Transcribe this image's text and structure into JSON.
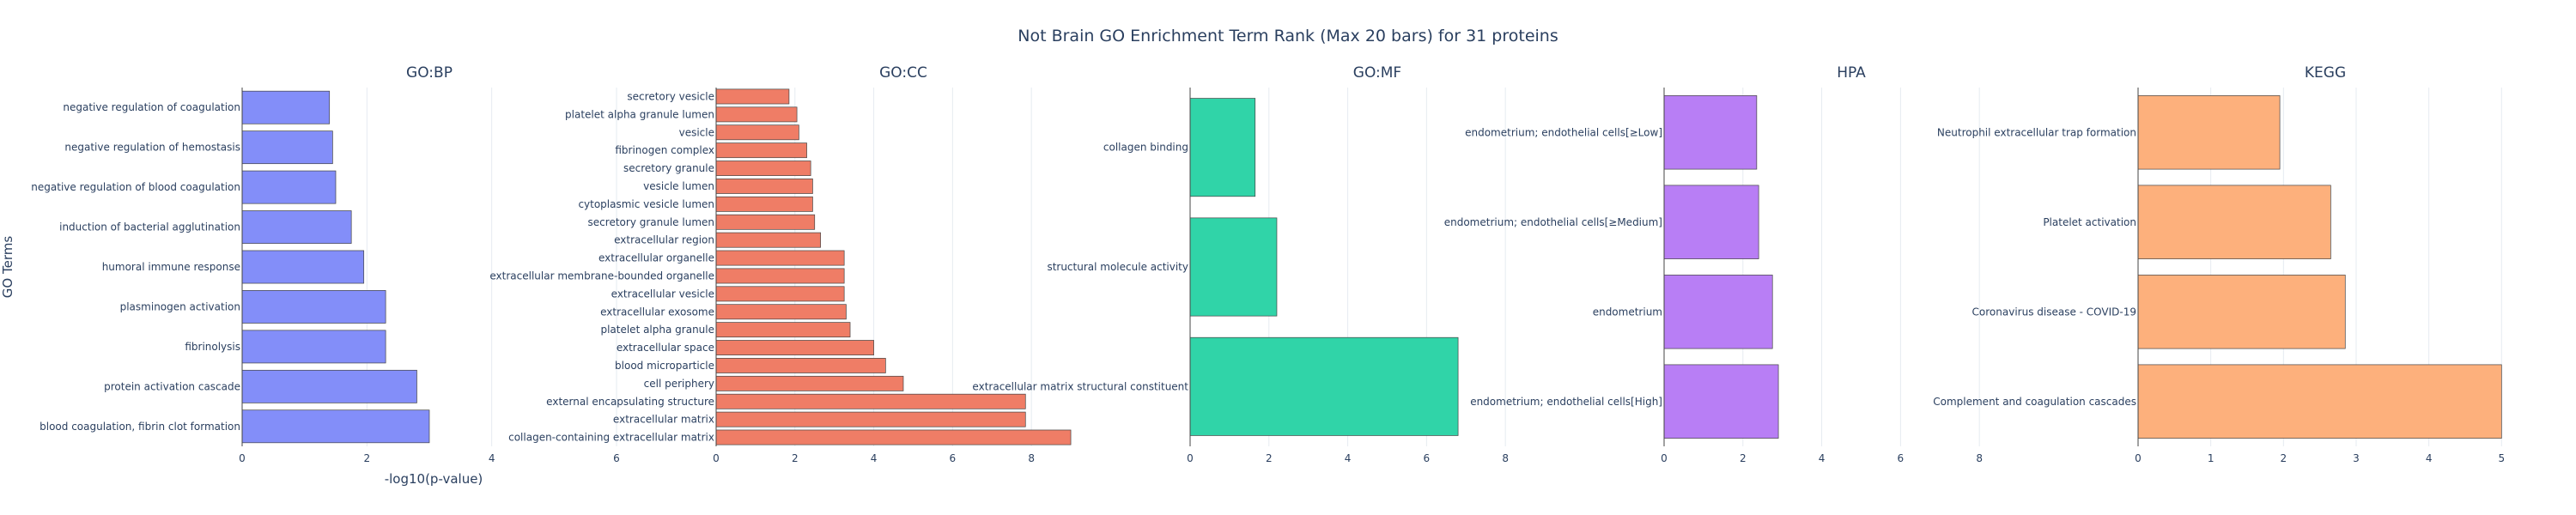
{
  "chart_data": {
    "type": "bar",
    "orientation": "horizontal",
    "title": "Not Brain GO Enrichment Term Rank (Max 20 bars) for 31 proteins",
    "xlabel": "-log10(p-value)",
    "ylabel": "GO Terms",
    "grid": true,
    "panels": [
      {
        "title": "GO:BP",
        "color": "#838ef9",
        "xlim": [
          0,
          6
        ],
        "xticks": [
          0,
          2,
          4,
          6
        ],
        "categories": [
          "negative regulation of coagulation",
          "negative regulation of hemostasis",
          "negative regulation of blood coagulation",
          "induction of bacterial agglutination",
          "humoral immune response",
          "plasminogen activation",
          "fibrinolysis",
          "protein activation cascade",
          "blood coagulation, fibrin clot formation"
        ],
        "values": [
          1.4,
          1.45,
          1.5,
          1.75,
          1.95,
          2.3,
          2.3,
          2.8,
          3.0
        ]
      },
      {
        "title": "GO:CC",
        "color": "#ef7d66",
        "xlim": [
          0,
          9.5
        ],
        "xticks": [
          0,
          2,
          4,
          6,
          8
        ],
        "categories": [
          "secretory vesicle",
          "platelet alpha granule lumen",
          "vesicle",
          "fibrinogen complex",
          "secretory granule",
          "vesicle lumen",
          "cytoplasmic vesicle lumen",
          "secretory granule lumen",
          "extracellular region",
          "extracellular organelle",
          "extracellular membrane-bounded organelle",
          "extracellular vesicle",
          "extracellular exosome",
          "platelet alpha granule",
          "extracellular space",
          "blood microparticle",
          "cell periphery",
          "external encapsulating structure",
          "extracellular matrix",
          "collagen-containing extracellular matrix"
        ],
        "values": [
          1.85,
          2.05,
          2.1,
          2.3,
          2.4,
          2.45,
          2.45,
          2.5,
          2.65,
          3.25,
          3.25,
          3.25,
          3.3,
          3.4,
          4.0,
          4.3,
          4.75,
          7.85,
          7.85,
          9.0
        ]
      },
      {
        "title": "GO:MF",
        "color": "#30d4a8",
        "xlim": [
          0,
          9.5
        ],
        "xticks": [
          0,
          2,
          4,
          6,
          8
        ],
        "categories": [
          "collagen binding",
          "structural molecule activity",
          "extracellular matrix structural constituent"
        ],
        "values": [
          1.65,
          2.2,
          6.8
        ]
      },
      {
        "title": "HPA",
        "color": "#b87ef5",
        "xlim": [
          0,
          9.5
        ],
        "xticks": [
          0,
          2,
          4,
          6,
          8
        ],
        "categories": [
          "endometrium; endothelial cells[≥Low]",
          "endometrium; endothelial cells[≥Medium]",
          "endometrium",
          "endometrium; endothelial cells[High]"
        ],
        "values": [
          2.35,
          2.4,
          2.75,
          2.9
        ]
      },
      {
        "title": "KEGG",
        "color": "#fdb07c",
        "xlim": [
          0,
          5.15
        ],
        "xticks": [
          0,
          1,
          2,
          3,
          4,
          5
        ],
        "categories": [
          "Neutrophil extracellular trap formation",
          "Platelet activation",
          "Coronavirus disease - COVID-19",
          "Complement and coagulation cascades"
        ],
        "values": [
          1.95,
          2.65,
          2.85,
          5.0
        ]
      }
    ]
  }
}
